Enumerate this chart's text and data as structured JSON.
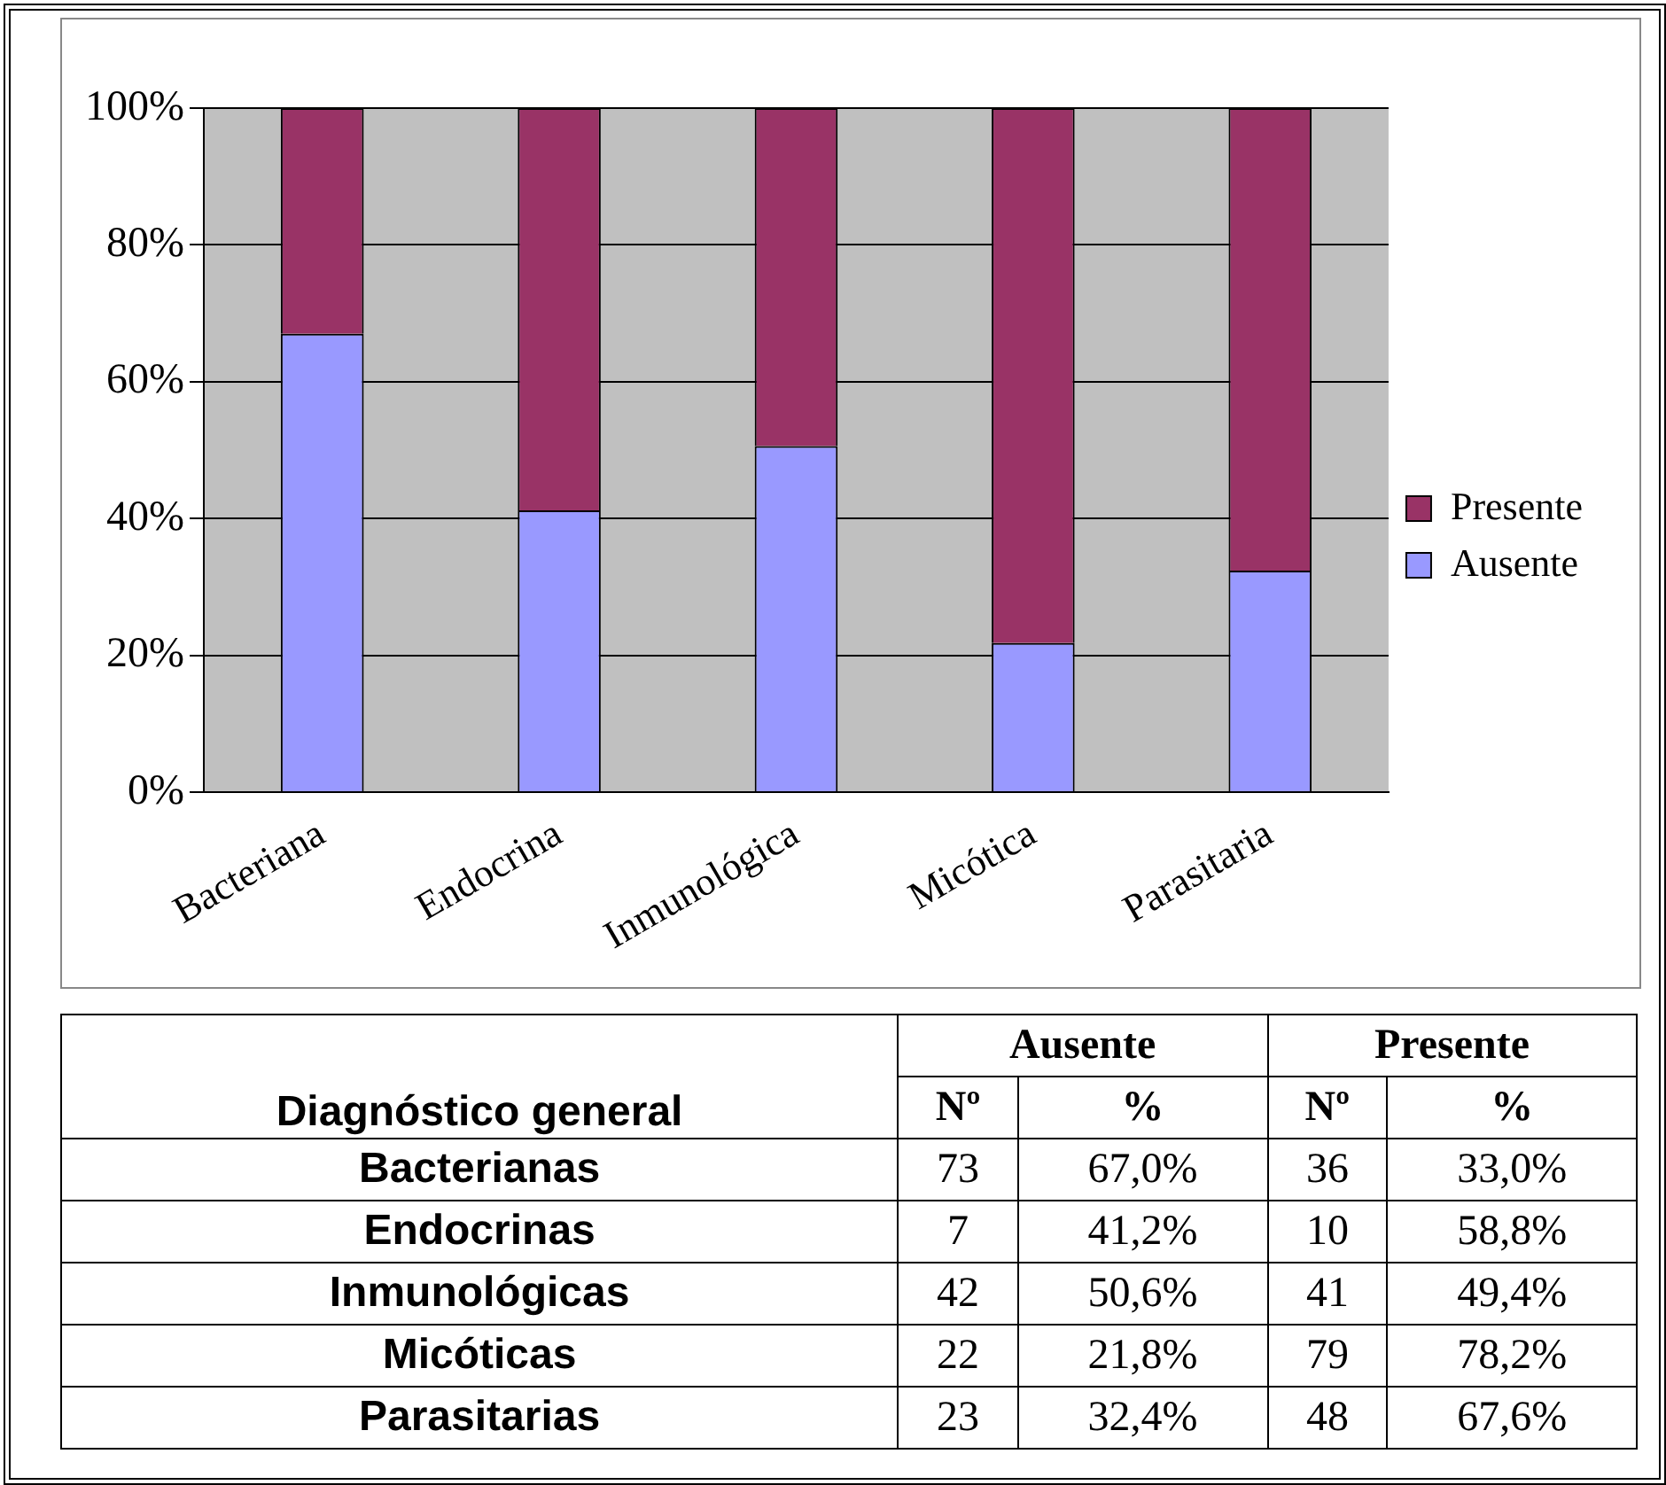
{
  "chart_data": [
    {
      "type": "bar",
      "stacked": true,
      "categories": [
        "Bacteriana",
        "Endocrina",
        "Inmunológica",
        "Micótica",
        "Parasitaria"
      ],
      "series": [
        {
          "name": "Ausente",
          "color": "#9999ff",
          "values": [
            67.0,
            41.2,
            50.6,
            21.8,
            32.4
          ]
        },
        {
          "name": "Presente",
          "color": "#993366",
          "values": [
            33.0,
            58.8,
            49.4,
            78.2,
            67.6
          ]
        }
      ],
      "ylim": [
        0,
        100
      ],
      "yticks": [
        {
          "value": 0,
          "label": "0%"
        },
        {
          "value": 20,
          "label": "20%"
        },
        {
          "value": 40,
          "label": "40%"
        },
        {
          "value": 60,
          "label": "60%"
        },
        {
          "value": 80,
          "label": "80%"
        },
        {
          "value": 100,
          "label": "100%"
        }
      ],
      "grid": "y",
      "legend": "right"
    },
    {
      "type": "other",
      "ylabel": "Diagnóstico general",
      "categories": [
        "Bacterianas",
        "Endocrinas",
        "Inmunológicas",
        "Micóticas",
        "Parasitarias"
      ],
      "annotations": [
        "Nº",
        "%"
      ],
      "series": [
        {
          "name": "Ausente",
          "values": [
            73,
            7,
            42,
            22,
            23
          ]
        },
        {
          "values": [
            67.0,
            41.2,
            50.6,
            21.8,
            32.4
          ],
          "value_labels": [
            "67,0%",
            "41,2%",
            "50,6%",
            "21,8%",
            "32,4%"
          ]
        },
        {
          "name": "Presente",
          "values": [
            36,
            10,
            41,
            79,
            48
          ]
        },
        {
          "values": [
            33.0,
            58.8,
            49.4,
            78.2,
            67.6
          ],
          "value_labels": [
            "33,0%",
            "58,8%",
            "49,4%",
            "78,2%",
            "67,6%"
          ]
        }
      ],
      "data_labels": true
    }
  ]
}
